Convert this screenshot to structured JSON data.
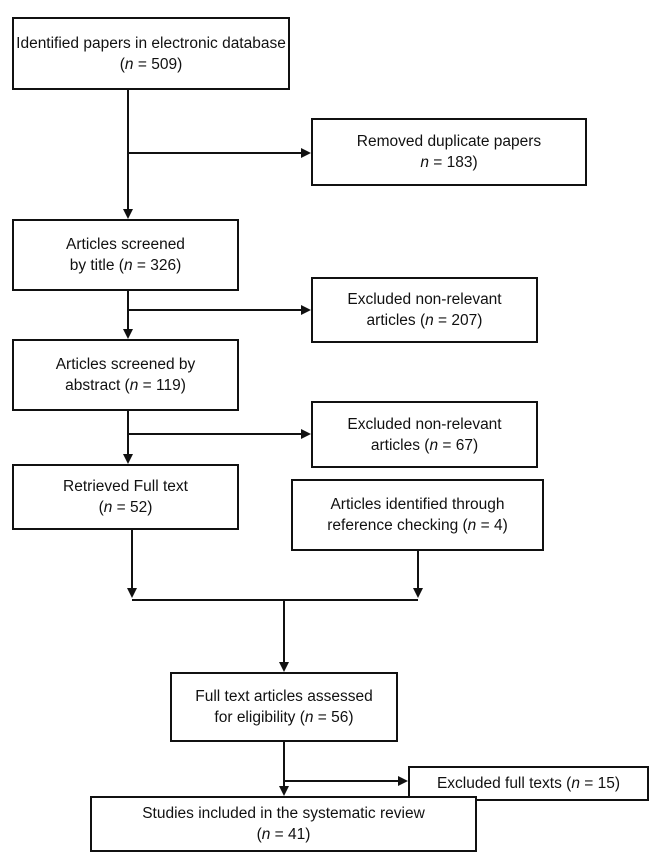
{
  "nodes": {
    "identified": {
      "lines": [
        [
          "Identified papers in electronic database"
        ],
        [
          "(",
          "n",
          " = 509)"
        ]
      ]
    },
    "duplicates": {
      "lines": [
        [
          "Removed duplicate papers"
        ],
        [
          "",
          "n",
          " = 183)"
        ]
      ]
    },
    "screened_title": {
      "lines": [
        [
          "Articles screened"
        ],
        [
          "by title (",
          "n",
          " = 326)"
        ]
      ]
    },
    "excluded_title": {
      "lines": [
        [
          "Excluded non-relevant"
        ],
        [
          "articles (",
          "n",
          " = 207)"
        ]
      ]
    },
    "screened_abstract": {
      "lines": [
        [
          "Articles screened by"
        ],
        [
          "abstract (",
          "n",
          " = 119)"
        ]
      ]
    },
    "excluded_abstract": {
      "lines": [
        [
          "Excluded non-relevant"
        ],
        [
          "articles (",
          "n",
          " = 67)"
        ]
      ]
    },
    "full_text": {
      "lines": [
        [
          "Retrieved Full text"
        ],
        [
          "(",
          "n",
          " = 52)"
        ]
      ]
    },
    "reference_checking": {
      "lines": [
        [
          "Articles identified through"
        ],
        [
          "reference checking (",
          "n",
          " = 4)"
        ]
      ]
    },
    "eligibility": {
      "lines": [
        [
          "Full text articles assessed"
        ],
        [
          "for eligibility (",
          "n",
          " = 56)"
        ]
      ]
    },
    "excluded_full": {
      "lines": [
        [
          "Excluded full texts (",
          "n",
          " = 15)"
        ]
      ]
    },
    "included": {
      "lines": [
        [
          "Studies included in the systematic review"
        ],
        [
          "(",
          "n",
          " = 41)"
        ]
      ]
    }
  }
}
